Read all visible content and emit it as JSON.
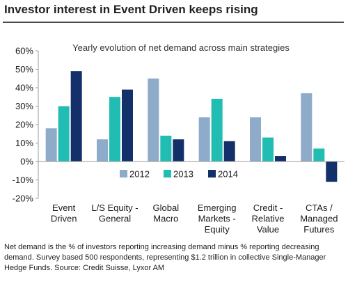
{
  "header": {
    "title": "Investor interest in Event Driven keeps rising"
  },
  "chart_data": {
    "type": "bar",
    "subtitle": "Yearly  evolution  of net demand across main strategies",
    "categories": [
      [
        "Event",
        "Driven"
      ],
      [
        "L/S Equity -",
        "General"
      ],
      [
        "Global",
        "Macro"
      ],
      [
        "Emerging",
        "Markets -",
        "Equity"
      ],
      [
        "Credit -",
        "Relative",
        "Value"
      ],
      [
        "CTAs /",
        "Managed",
        "Futures"
      ]
    ],
    "series": [
      {
        "name": "2012",
        "color": "#8eabc9",
        "values": [
          18,
          12,
          45,
          24,
          24,
          37
        ]
      },
      {
        "name": "2013",
        "color": "#22bdb2",
        "values": [
          30,
          35,
          14,
          34,
          13,
          7
        ]
      },
      {
        "name": "2014",
        "color": "#14306b",
        "values": [
          49,
          39,
          12,
          11,
          3,
          -11
        ]
      }
    ],
    "ylim": [
      -20,
      60
    ],
    "yticks": [
      "60%",
      "50%",
      "40%",
      "30%",
      "20%",
      "10%",
      "0%",
      "-10%",
      "-20%"
    ],
    "ytick_values": [
      60,
      50,
      40,
      30,
      20,
      10,
      0,
      -10,
      -20
    ],
    "legend_position": "inside, lower middle",
    "grid": false
  },
  "footnote": "Net demand is the % of investors reporting increasing demand minus % reporting decreasing demand. Survey based 500 respondents, representing $1.2 trillion in collective Single-Manager Hedge Funds. Source: Credit Suisse, Lyxor AM"
}
